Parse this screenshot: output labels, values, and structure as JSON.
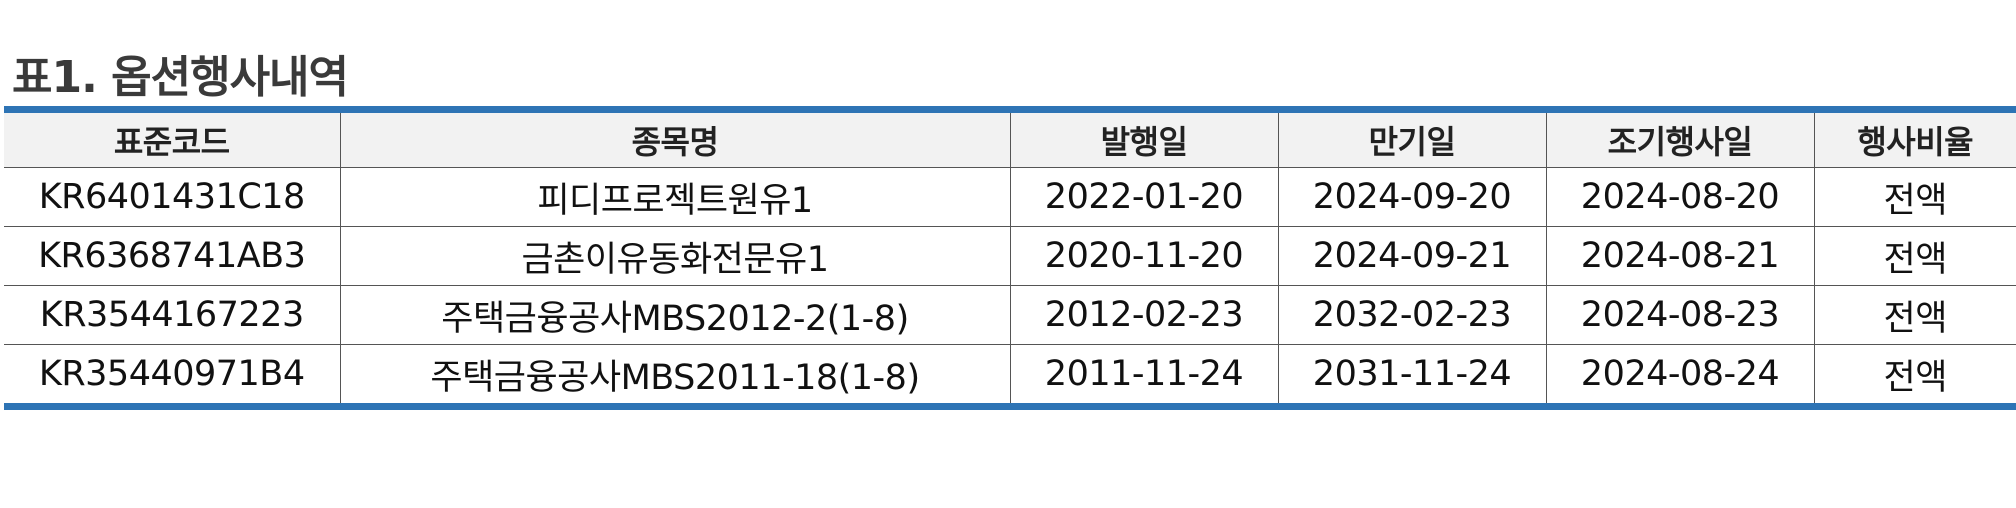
{
  "title": "표1. 옵션행사내역",
  "table": {
    "headers": [
      "표준코드",
      "종목명",
      "발행일",
      "만기일",
      "조기행사일",
      "행사비율"
    ],
    "rows": [
      [
        "KR6401431C18",
        "피디프로젝트원유1",
        "2022-01-20",
        "2024-09-20",
        "2024-08-20",
        "전액"
      ],
      [
        "KR6368741AB3",
        "금촌이유동화전문유1",
        "2020-11-20",
        "2024-09-21",
        "2024-08-21",
        "전액"
      ],
      [
        "KR3544167223",
        "주택금융공사MBS2012-2(1-8)",
        "2012-02-23",
        "2032-02-23",
        "2024-08-23",
        "전액"
      ],
      [
        "KR35440971B4",
        "주택금융공사MBS2011-18(1-8)",
        "2011-11-24",
        "2031-11-24",
        "2024-08-24",
        "전액"
      ]
    ]
  },
  "colors": {
    "border_accent": "#2e74b5",
    "header_bg": "#f2f2f2",
    "title_text": "#3a3a3a"
  }
}
